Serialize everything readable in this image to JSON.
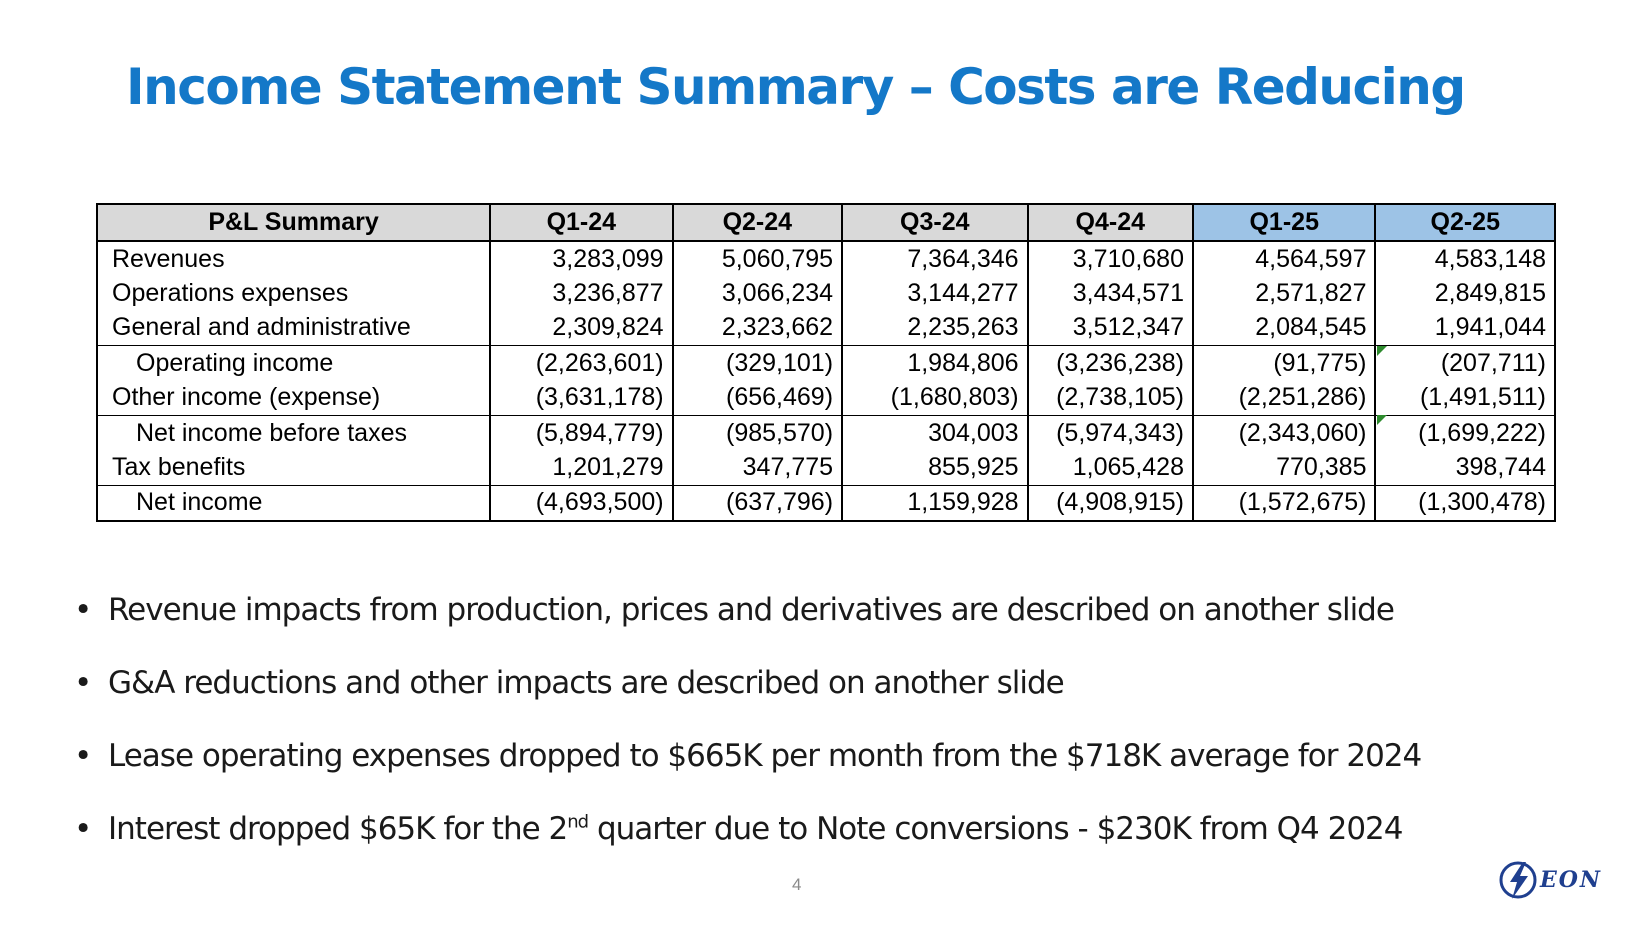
{
  "slide": {
    "title": "Income Statement Summary – Costs are Reducing",
    "page_number": "4"
  },
  "table": {
    "headers": [
      "P&L Summary",
      "Q1-24",
      "Q2-24",
      "Q3-24",
      "Q4-24",
      "Q1-25",
      "Q2-25"
    ],
    "rows": [
      [
        "Revenues",
        "3,283,099",
        "5,060,795",
        "7,364,346",
        "3,710,680",
        "4,564,597",
        "4,583,148"
      ],
      [
        "Operations expenses",
        "3,236,877",
        "3,066,234",
        "3,144,277",
        "3,434,571",
        "2,571,827",
        "2,849,815"
      ],
      [
        "General and administrative",
        "2,309,824",
        "2,323,662",
        "2,235,263",
        "3,512,347",
        "2,084,545",
        "1,941,044"
      ],
      [
        "Operating income",
        "(2,263,601)",
        "(329,101)",
        "1,984,806",
        "(3,236,238)",
        "(91,775)",
        "(207,711)"
      ],
      [
        "Other income (expense)",
        "(3,631,178)",
        "(656,469)",
        "(1,680,803)",
        "(2,738,105)",
        "(2,251,286)",
        "(1,491,511)"
      ],
      [
        "Net income before taxes",
        "(5,894,779)",
        "(985,570)",
        "304,003",
        "(5,974,343)",
        "(2,343,060)",
        "(1,699,222)"
      ],
      [
        "Tax benefits",
        "1,201,279",
        "347,775",
        "855,925",
        "1,065,428",
        "770,385",
        "398,744"
      ],
      [
        "Net income",
        "(4,693,500)",
        "(637,796)",
        "1,159,928",
        "(4,908,915)",
        "(1,572,675)",
        "(1,300,478)"
      ]
    ]
  },
  "bullets": [
    {
      "text": "Revenue impacts from production, prices and derivatives are described on another slide"
    },
    {
      "text": "G&A reductions and other impacts are described on another slide"
    },
    {
      "text": "Lease operating expenses dropped to $665K per month from the $718K average for 2024"
    },
    {
      "pre": "Interest dropped $65K for the 2",
      "sup": "nd",
      "post": " quarter due to Note conversions - $230K from Q4 2024"
    }
  ],
  "logo": {
    "text": "EON",
    "icon": "lightning-bolt-icon"
  },
  "colors": {
    "title": "#1478C8",
    "header_gray": "#D9D9D9",
    "header_blue": "#9DC3E6",
    "logo": "#1f3f8f",
    "error_marker": "#2E8B2E"
  }
}
